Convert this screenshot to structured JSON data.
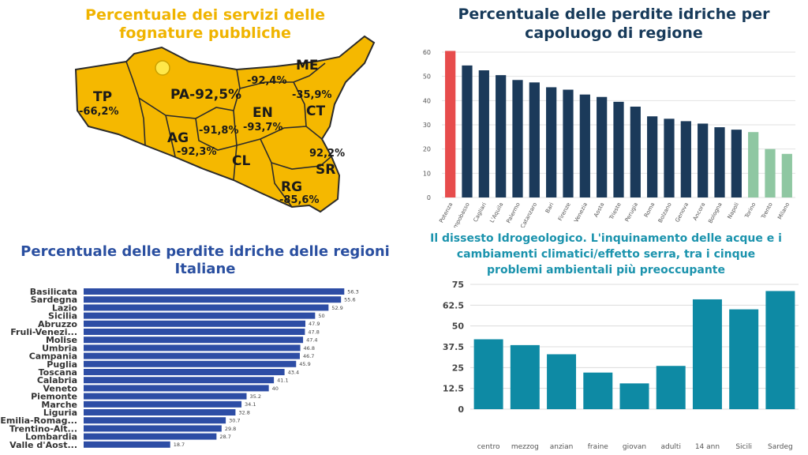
{
  "chart_data": [
    {
      "type": "map",
      "title": "Percentuale dei servizi delle fognature pubbliche",
      "provinces": [
        {
          "code": "TP",
          "value": "-66,2%"
        },
        {
          "code": "PA",
          "value": "-92,5%"
        },
        {
          "code": "ME",
          "value": "-92,4%"
        },
        {
          "code": "CT",
          "value": "-35,9%"
        },
        {
          "code": "EN",
          "value": "-93,7%"
        },
        {
          "code": "AG",
          "value": "-92,3%"
        },
        {
          "code": "CL",
          "value": "-91,8%"
        },
        {
          "code": "SR",
          "value": "92,2%"
        },
        {
          "code": "RG",
          "value": "-85,6%"
        }
      ],
      "colors": {
        "fill": "#f5b800",
        "stroke": "#2b2b2b"
      }
    },
    {
      "type": "bar",
      "title": "Percentuale delle perdite idriche per capoluogo di regione",
      "categories": [
        "Potenza",
        "Campobasso",
        "Cagliari",
        "L'Aquila",
        "Palermo",
        "Catanzaro",
        "Bari",
        "Firenze",
        "Venezia",
        "Aosta",
        "Trieste",
        "Perugia",
        "Roma",
        "Bolzano",
        "Genova",
        "Ancora",
        "Bologna",
        "Napoli",
        "Torino",
        "Trento",
        "Milano"
      ],
      "values": [
        60.5,
        54.5,
        52.5,
        50.5,
        48.5,
        47.5,
        45.5,
        44.5,
        42.5,
        41.5,
        39.5,
        37.5,
        33.5,
        32.5,
        31.5,
        30.5,
        29,
        28,
        27,
        20,
        18
      ],
      "ylim": [
        0,
        60
      ],
      "yticks": [
        0,
        10,
        20,
        30,
        40,
        50,
        60
      ],
      "grid": true,
      "colors": {
        "highlight": "#e74c4c",
        "main": "#1b3a5a",
        "low": "#8fc7a2"
      }
    },
    {
      "type": "bar",
      "orientation": "horizontal",
      "title": "Percentuale delle perdite idriche delle regioni Italiane",
      "categories": [
        "Basilicata",
        "Sardegna",
        "Lazio",
        "Sicilia",
        "Abruzzo",
        "Fruli-Venezi...",
        "Molise",
        "Umbria",
        "Campania",
        "Puglia",
        "Toscana",
        "Calabria",
        "Veneto",
        "Piemonte",
        "Marche",
        "Liguria",
        "Emilia-Romag...",
        "Trentino-Alt...",
        "Lombardia",
        "Valle d'Aost..."
      ],
      "values": [
        56.3,
        55.6,
        52.9,
        50,
        47.9,
        47.8,
        47.4,
        46.8,
        46.7,
        45.9,
        43.4,
        41.1,
        40,
        35.2,
        34.1,
        32.8,
        30.7,
        29.8,
        28.7,
        18.7
      ],
      "value_labels": [
        "56.3",
        "55.6",
        "52.9",
        "50",
        "47.9",
        "47.8",
        "47.4",
        "46.8",
        "46.7",
        "45.9",
        "43.4",
        "41.1",
        "40",
        "35.2",
        "34.1",
        "32.8",
        "30.7",
        "29.8",
        "28.7",
        "18.7"
      ],
      "xlim": [
        0,
        60
      ],
      "colors": {
        "bar": "#2d4da5"
      }
    },
    {
      "type": "bar",
      "title": "Il dissesto Idrogeologico. L'inquinamento delle acque e i cambiamenti climatici/effetto serra, tra i cinque problemi ambientali più preoccupante",
      "categories": [
        "centro",
        "mezzog",
        "anzian",
        "fraine",
        "giovan",
        "adulti",
        "14 ann",
        "Sicili",
        "Sardeg"
      ],
      "values": [
        42,
        38.5,
        33,
        22,
        15.5,
        26,
        66,
        60,
        71
      ],
      "ylim": [
        0,
        75
      ],
      "yticks": [
        "0",
        "12.5",
        "25",
        "37.5",
        "50",
        "62.5",
        "75"
      ],
      "grid": true,
      "colors": {
        "bar": "#0e8aa4"
      }
    }
  ]
}
